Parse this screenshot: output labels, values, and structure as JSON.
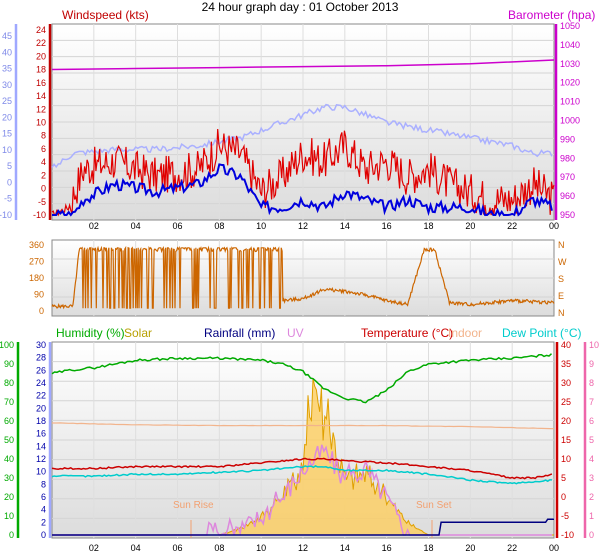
{
  "title": "24 hour graph day : 01 October 2013",
  "x_ticks": [
    "02",
    "04",
    "06",
    "08",
    "10",
    "12",
    "14",
    "16",
    "18",
    "20",
    "22",
    "00"
  ],
  "colors": {
    "windspeed": "#c00000",
    "barometer": "#cc00cc",
    "wind_blue": "#0000dd",
    "wind_light": "#aab0ff",
    "direction": "#cc6600",
    "humidity": "#00aa00",
    "solar": "#b8a000",
    "rainfall": "#000080",
    "uv": "#dd88dd",
    "temperature": "#cc0000",
    "indoor": "#f2b48c",
    "dewpoint": "#00cccc",
    "axis_blue": "#9fa8ff",
    "axis_pink": "#ee66aa"
  },
  "chart_data": [
    {
      "type": "line",
      "legend": {
        "windspeed": "Windspeed (kts)",
        "barometer": "Barometer (hpa)"
      },
      "left_axis_ticks": [
        "24",
        "22",
        "20",
        "18",
        "16",
        "14",
        "12",
        "10",
        "8",
        "6",
        "4",
        "2",
        "0",
        "-5",
        "-10"
      ],
      "left_axis_ticks_blue": [
        "45",
        "40",
        "35",
        "30",
        "25",
        "20",
        "15",
        "10",
        "5",
        "0",
        "-5",
        "-10"
      ],
      "right_axis_ticks": [
        "1050",
        "1040",
        "1030",
        "1020",
        "1010",
        "1000",
        "990",
        "980",
        "970",
        "960",
        "950"
      ],
      "ylim_wind": [
        0,
        24
      ],
      "ylim_baro": [
        950,
        1050
      ],
      "x_range_hours": [
        0,
        24
      ],
      "series": [
        {
          "name": "Barometer (hpa)",
          "x": [
            0,
            4,
            8,
            12,
            16,
            20,
            24
          ],
          "values": [
            1027,
            1027.5,
            1028,
            1028.5,
            1029,
            1030,
            1032
          ]
        },
        {
          "name": "Windspeed (kts)",
          "x": [
            0,
            0.8,
            1.5,
            3,
            5,
            7,
            8,
            9,
            10,
            11,
            12,
            13,
            14,
            15,
            16,
            17,
            18,
            19,
            20,
            21,
            22,
            23,
            24
          ],
          "values": [
            0,
            1,
            6,
            7,
            5,
            6,
            9,
            8,
            3,
            5,
            8,
            7,
            9,
            6,
            7,
            5,
            6,
            4,
            3,
            2,
            2,
            4,
            2
          ]
        },
        {
          "x": [
            0,
            1,
            1.5,
            3,
            5,
            7,
            8,
            9,
            10,
            11,
            12,
            13,
            14,
            15,
            16,
            17,
            18,
            19,
            20,
            21,
            22,
            23,
            24
          ],
          "values": [
            0,
            0,
            2,
            4,
            3,
            4,
            6,
            5,
            1,
            1,
            2,
            1,
            3,
            2,
            1,
            2,
            1,
            1,
            1,
            0,
            0,
            2,
            1
          ]
        },
        {
          "x": [
            0,
            1,
            3,
            5,
            7,
            9,
            11,
            13,
            14,
            15,
            16,
            18,
            20,
            22,
            23,
            24
          ],
          "values": [
            6,
            8,
            8.5,
            8.5,
            9,
            10,
            12,
            14,
            14,
            13,
            12,
            11,
            10,
            9,
            8,
            8
          ]
        }
      ]
    },
    {
      "type": "line",
      "left_axis_ticks": [
        "360",
        "270",
        "180",
        "90",
        "0"
      ],
      "right_axis_ticks": [
        "N",
        "W",
        "S",
        "E",
        "N"
      ],
      "ylim": [
        0,
        360
      ],
      "series": [
        {
          "x": [
            0,
            1,
            1.3,
            2,
            3,
            4,
            5,
            6,
            7,
            8,
            9,
            10,
            11,
            12,
            13,
            14,
            15,
            16,
            17,
            17.8,
            18.3,
            19,
            20,
            22,
            24
          ],
          "values": [
            30,
            30,
            330,
            320,
            20,
            320,
            330,
            20,
            330,
            20,
            320,
            20,
            60,
            70,
            120,
            110,
            90,
            60,
            40,
            330,
            330,
            50,
            40,
            60,
            50
          ]
        }
      ]
    },
    {
      "type": "line",
      "legend": {
        "humidity": "Humidity (%)",
        "solar": "Solar",
        "rainfall": "Rainfall (mm)",
        "uv": "UV",
        "temperature": "Temperature (°C)",
        "indoor": "Indoor",
        "dewpoint": "Dew Point (°C)"
      },
      "left_axis_ticks": [
        "100",
        "90",
        "80",
        "70",
        "60",
        "50",
        "40",
        "30",
        "20",
        "10",
        "0"
      ],
      "left2_axis_ticks": [
        "30",
        "28",
        "26",
        "24",
        "22",
        "20",
        "18",
        "16",
        "14",
        "12",
        "10",
        "8",
        "6",
        "4",
        "2",
        "0"
      ],
      "right_axis_ticks": [
        "40",
        "35",
        "30",
        "25",
        "20",
        "15",
        "10",
        "5",
        "0",
        "-5",
        "-10"
      ],
      "right2_axis_ticks": [
        "10",
        "9",
        "8",
        "7",
        "6",
        "5",
        "4",
        "3",
        "2",
        "1",
        "0"
      ],
      "ylim_humidity": [
        0,
        100
      ],
      "ylim_temperature": [
        -10,
        40
      ],
      "annotations": [
        "Sun Rise",
        "Sun Set"
      ],
      "series": [
        {
          "name": "Humidity (%)",
          "x": [
            0,
            1,
            2,
            3,
            4,
            6,
            8,
            10,
            11,
            12,
            13,
            14,
            15,
            16,
            17,
            18,
            20,
            22,
            24
          ],
          "values": [
            85,
            87,
            88,
            90,
            92,
            93,
            93,
            92,
            90,
            86,
            77,
            72,
            70,
            76,
            86,
            90,
            92,
            93,
            95
          ]
        },
        {
          "name": "Temperature (°C)",
          "x": [
            0,
            2,
            4,
            6,
            8,
            10,
            12,
            13,
            14,
            16,
            18,
            20,
            22,
            23,
            24
          ],
          "values": [
            7.5,
            7.5,
            8,
            8,
            8,
            9,
            10,
            10,
            9.5,
            9,
            8,
            7,
            5,
            5,
            6
          ]
        },
        {
          "name": "Indoor",
          "x": [
            0,
            4,
            8,
            12,
            16,
            20,
            24
          ],
          "values": [
            19.5,
            19,
            18.8,
            18.8,
            18.8,
            18.5,
            18
          ]
        },
        {
          "name": "Dew Point (°C)",
          "x": [
            0,
            2,
            4,
            6,
            8,
            10,
            12,
            13,
            14,
            16,
            18,
            20,
            22,
            24
          ],
          "values": [
            5.5,
            5.5,
            6,
            6,
            6.5,
            7,
            8,
            8,
            7,
            7,
            6,
            4.5,
            3.5,
            4.5
          ]
        },
        {
          "name": "Solar",
          "x": [
            0,
            7,
            8,
            9,
            10,
            11,
            12,
            12.5,
            13,
            13.5,
            14,
            15,
            16,
            17,
            18,
            24
          ],
          "values": [
            0,
            0,
            0,
            1,
            3,
            6,
            10,
            26,
            19,
            15,
            9,
            10,
            6,
            2,
            0,
            0
          ]
        },
        {
          "name": "UV",
          "x": [
            0,
            7,
            9,
            10,
            11,
            12,
            13,
            14,
            15,
            16,
            17,
            24
          ],
          "values": [
            0,
            0,
            0.3,
            1,
            2,
            3.5,
            4.5,
            3,
            3.5,
            2,
            0,
            0
          ]
        },
        {
          "name": "Rainfall (mm)",
          "x": [
            0,
            18.5,
            18.6,
            23.6,
            23.7,
            24
          ],
          "values": [
            0,
            0,
            2,
            2,
            2.5,
            2.5
          ]
        }
      ]
    }
  ]
}
